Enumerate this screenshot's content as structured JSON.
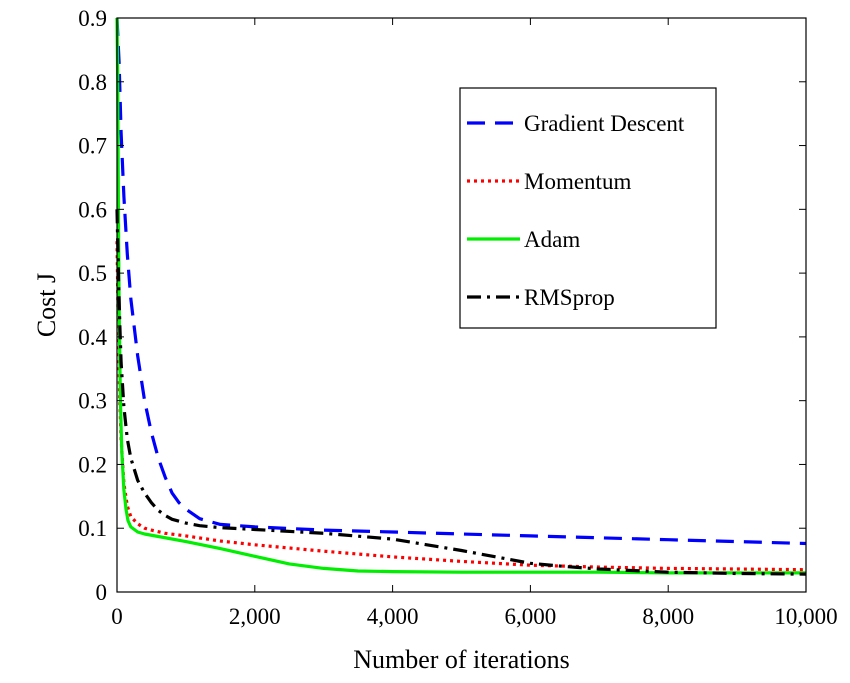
{
  "chart_data": {
    "type": "line",
    "xlabel": "Number of iterations",
    "ylabel": "Cost J",
    "xlim": [
      0,
      10000
    ],
    "ylim": [
      0,
      0.9
    ],
    "xticks": [
      0,
      2000,
      4000,
      6000,
      8000,
      10000
    ],
    "xtick_labels": [
      "0",
      "2,000",
      "4,000",
      "6,000",
      "8,000",
      "10,000"
    ],
    "yticks": [
      0,
      0.1,
      0.2,
      0.3,
      0.4,
      0.5,
      0.6,
      0.7,
      0.8,
      0.9
    ],
    "ytick_labels": [
      "0",
      "0.1",
      "0.2",
      "0.3",
      "0.4",
      "0.5",
      "0.6",
      "0.7",
      "0.8",
      "0.9"
    ],
    "grid": false,
    "legend_position": "top-right",
    "series": [
      {
        "name": "Gradient Descent",
        "color": "#0000ff",
        "style": "dashed",
        "x": [
          0,
          30,
          60,
          100,
          150,
          200,
          300,
          400,
          500,
          600,
          700,
          800,
          900,
          1000,
          1200,
          1500,
          2000,
          3000,
          4000,
          5000,
          6000,
          7000,
          8000,
          9000,
          10000
        ],
        "y": [
          0.9,
          0.83,
          0.72,
          0.62,
          0.53,
          0.46,
          0.37,
          0.3,
          0.25,
          0.21,
          0.18,
          0.155,
          0.14,
          0.13,
          0.115,
          0.106,
          0.102,
          0.097,
          0.094,
          0.091,
          0.088,
          0.085,
          0.082,
          0.079,
          0.076
        ]
      },
      {
        "name": "Momentum",
        "color": "#ff0000",
        "style": "dotted",
        "x": [
          0,
          20,
          40,
          60,
          100,
          150,
          200,
          300,
          400,
          500,
          700,
          1000,
          1500,
          2000,
          3000,
          4000,
          5000,
          6000,
          7000,
          8000,
          9000,
          10000
        ],
        "y": [
          0.55,
          0.4,
          0.3,
          0.24,
          0.17,
          0.135,
          0.118,
          0.107,
          0.1,
          0.097,
          0.092,
          0.088,
          0.08,
          0.074,
          0.064,
          0.055,
          0.048,
          0.042,
          0.039,
          0.037,
          0.036,
          0.035
        ]
      },
      {
        "name": "Adam",
        "color": "#00ee00",
        "style": "solid",
        "x": [
          0,
          10,
          20,
          30,
          50,
          70,
          100,
          130,
          160,
          200,
          300,
          400,
          600,
          1000,
          1500,
          2000,
          2500,
          3000,
          3500,
          4000,
          5000,
          6000,
          7000,
          8000,
          9000,
          10000
        ],
        "y": [
          0.9,
          0.8,
          0.6,
          0.45,
          0.3,
          0.22,
          0.16,
          0.13,
          0.112,
          0.102,
          0.094,
          0.091,
          0.087,
          0.079,
          0.068,
          0.056,
          0.044,
          0.037,
          0.033,
          0.032,
          0.031,
          0.031,
          0.031,
          0.03,
          0.03,
          0.03
        ]
      },
      {
        "name": "RMSprop",
        "color": "#000000",
        "style": "dashdot",
        "x": [
          0,
          20,
          40,
          60,
          100,
          150,
          200,
          300,
          400,
          500,
          600,
          700,
          800,
          1000,
          1200,
          1500,
          2000,
          3000,
          4000,
          5000,
          6000,
          6500,
          7000,
          8000,
          9000,
          10000
        ],
        "y": [
          0.6,
          0.5,
          0.42,
          0.36,
          0.29,
          0.24,
          0.21,
          0.175,
          0.155,
          0.14,
          0.128,
          0.12,
          0.114,
          0.108,
          0.104,
          0.101,
          0.098,
          0.092,
          0.083,
          0.065,
          0.045,
          0.04,
          0.036,
          0.031,
          0.029,
          0.028
        ]
      }
    ]
  }
}
